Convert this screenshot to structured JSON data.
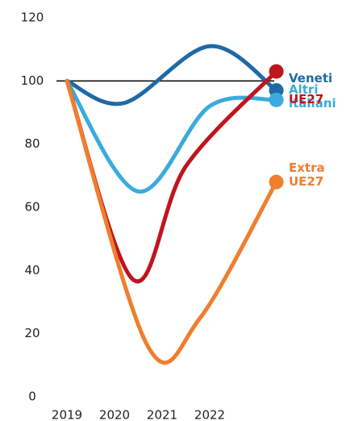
{
  "chart_data": {
    "type": "line",
    "xlim": [
      2018.7,
      2024.5
    ],
    "xticks": [
      2019,
      2020,
      2021,
      2022
    ],
    "ylim": [
      0,
      120
    ],
    "yticks": [
      0,
      20,
      40,
      60,
      80,
      100,
      120
    ],
    "reference": 100,
    "series": [
      {
        "name": "Veneti",
        "color": "#1f6aa5",
        "x": [
          2019,
          2020.2,
          2022,
          2023.4
        ],
        "values": [
          100,
          93,
          111,
          97
        ]
      },
      {
        "name": "Altri italiani",
        "color": "#3aabdc",
        "x": [
          2019,
          2020.5,
          2022,
          2023.4
        ],
        "values": [
          100,
          65,
          92,
          94
        ]
      },
      {
        "name": "UE27",
        "color": "#c0141e",
        "x": [
          2019,
          2020.4,
          2021.5,
          2023.4
        ],
        "values": [
          100,
          37,
          73,
          103
        ]
      },
      {
        "name": "Extra UE27",
        "color": "#ef7e2f",
        "x": [
          2019,
          2020.7,
          2021.8,
          2023.4
        ],
        "values": [
          100,
          16,
          25,
          68
        ]
      }
    ]
  }
}
